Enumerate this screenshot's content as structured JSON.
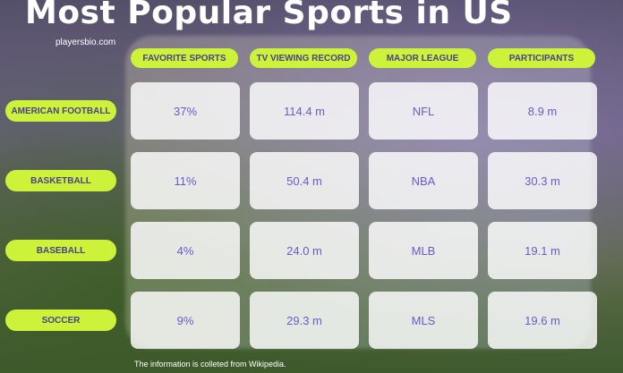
{
  "title": "Most Popular Sports in US",
  "site": "playersbio.com",
  "columns": [
    "FAVORITE SPORTS",
    "TV VIEWING RECORD",
    "MAJOR LEAGUE",
    "PARTICIPANTS"
  ],
  "rows": [
    {
      "sport": "AMERICAN FOOTBALL",
      "favorite": "37%",
      "tv": "114.4 m",
      "league": "NFL",
      "participants": "8.9 m"
    },
    {
      "sport": "BASKETBALL",
      "favorite": "11%",
      "tv": "50.4 m",
      "league": "NBA",
      "participants": "30.3 m"
    },
    {
      "sport": "BASEBALL",
      "favorite": "4%",
      "tv": "24.0 m",
      "league": "MLB",
      "participants": "19.1 m"
    },
    {
      "sport": "SOCCER",
      "favorite": "9%",
      "tv": "29.3 m",
      "league": "MLS",
      "participants": "19.6 m"
    }
  ],
  "footer": "The information is colleted from Wikipedia.",
  "colors": {
    "accent": "#ccf23a",
    "text": "#6a5bc7",
    "header_text": "#4b3f8f"
  }
}
